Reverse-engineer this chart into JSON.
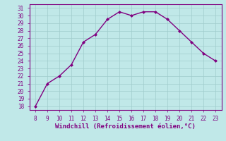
{
  "x": [
    8,
    9,
    10,
    11,
    12,
    13,
    14,
    15,
    16,
    17,
    18,
    19,
    20,
    21,
    22,
    23
  ],
  "y": [
    18,
    21,
    22,
    23.5,
    26.5,
    27.5,
    29.5,
    30.5,
    30,
    30.5,
    30.5,
    29.5,
    28,
    26.5,
    25,
    24
  ],
  "line_color": "#800080",
  "marker": "D",
  "marker_size": 2.0,
  "line_width": 1.0,
  "bg_color": "#c0e8e8",
  "grid_color": "#a0cccc",
  "xlabel": "Windchill (Refroidissement éolien,°C)",
  "xlabel_color": "#800080",
  "tick_color": "#800080",
  "xlim": [
    7.5,
    23.5
  ],
  "ylim": [
    17.5,
    31.5
  ],
  "xticks": [
    8,
    9,
    10,
    11,
    12,
    13,
    14,
    15,
    16,
    17,
    18,
    19,
    20,
    21,
    22,
    23
  ],
  "yticks": [
    18,
    19,
    20,
    21,
    22,
    23,
    24,
    25,
    26,
    27,
    28,
    29,
    30,
    31
  ],
  "xlabel_fontsize": 6.5,
  "tick_fontsize": 5.5
}
